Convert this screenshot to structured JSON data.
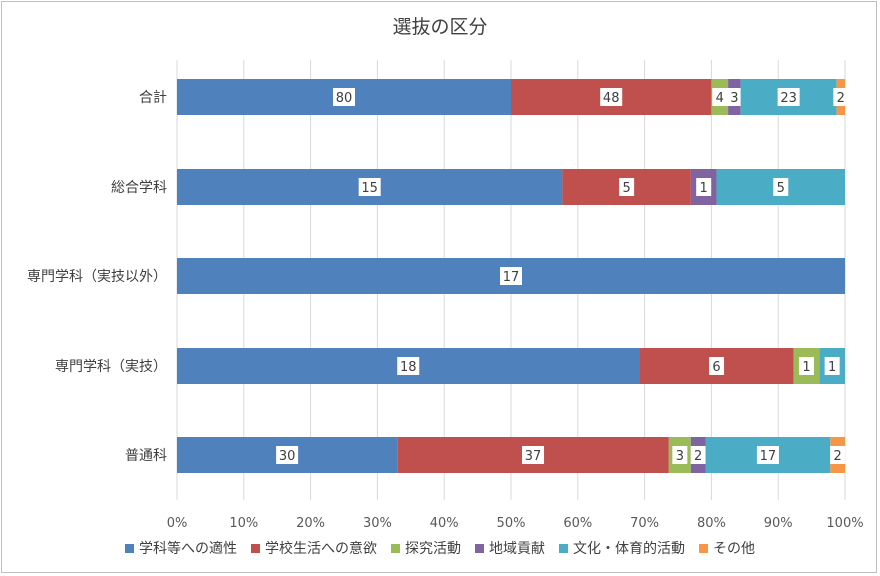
{
  "chart_data": {
    "type": "bar",
    "orientation": "horizontal",
    "stacked": "percent",
    "title": "選抜の区分",
    "categories": [
      "合計",
      "総合学科",
      "専門学科（実技以外）",
      "専門学科（実技）",
      "普通科"
    ],
    "series": [
      {
        "name": "学科等への適性",
        "color": "#4f81bd",
        "values": [
          80,
          15,
          17,
          18,
          30
        ]
      },
      {
        "name": "学校生活への意欲",
        "color": "#c0504d",
        "values": [
          48,
          5,
          0,
          6,
          37
        ]
      },
      {
        "name": "探究活動",
        "color": "#9bbb59",
        "values": [
          4,
          0,
          0,
          1,
          3
        ]
      },
      {
        "name": "地域貢献",
        "color": "#8064a2",
        "values": [
          3,
          1,
          0,
          0,
          2
        ]
      },
      {
        "name": "文化・体育的活動",
        "color": "#4bacc6",
        "values": [
          23,
          5,
          0,
          1,
          17
        ]
      },
      {
        "name": "その他",
        "color": "#f79646",
        "values": [
          2,
          0,
          0,
          0,
          2
        ]
      }
    ],
    "x_ticks": [
      "0%",
      "10%",
      "20%",
      "30%",
      "40%",
      "50%",
      "60%",
      "70%",
      "80%",
      "90%",
      "100%"
    ],
    "xlim": [
      0,
      100
    ],
    "grid": true,
    "legend": "bottom"
  }
}
